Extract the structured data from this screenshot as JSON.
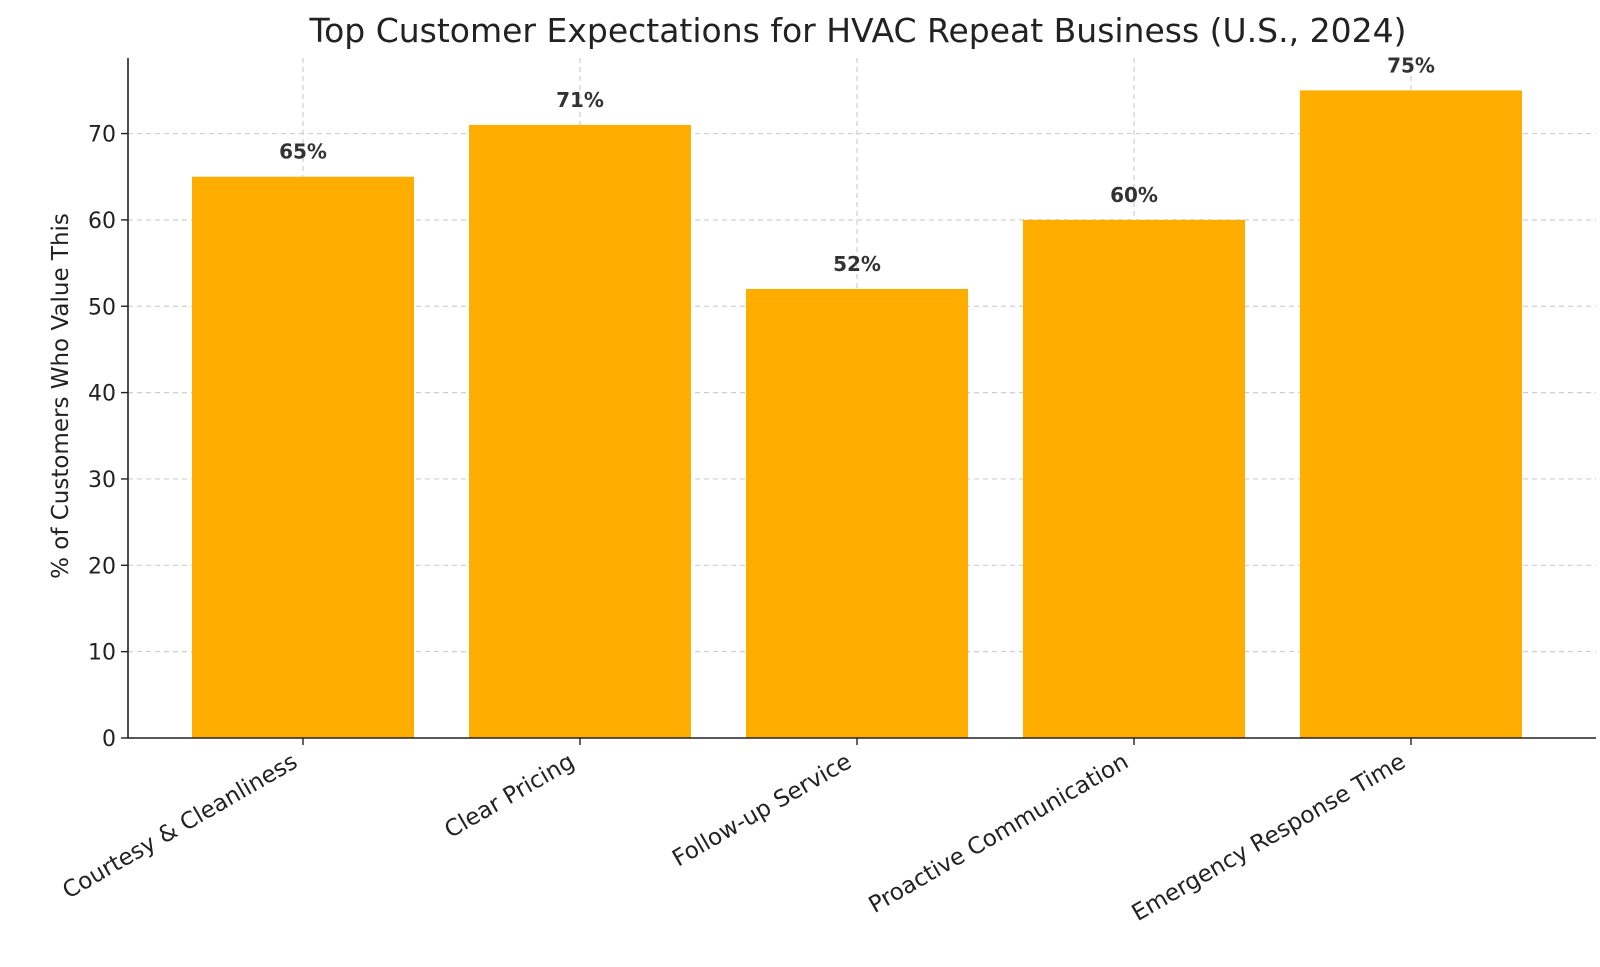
{
  "chart_data": {
    "type": "bar",
    "title": "Top Customer Expectations for HVAC Repeat Business (U.S., 2024)",
    "xlabel": "",
    "ylabel": "% of Customers Who Value This",
    "categories": [
      "Courtesy & Cleanliness",
      "Clear Pricing",
      "Follow-up Service",
      "Proactive Communication",
      "Emergency Response Time"
    ],
    "values": [
      65,
      71,
      52,
      60,
      75
    ],
    "data_labels": [
      "65%",
      "71%",
      "52%",
      "60%",
      "75%"
    ],
    "yticks": [
      0,
      10,
      20,
      30,
      40,
      50,
      60,
      70
    ],
    "ylim": [
      0,
      78.75
    ],
    "grid": true,
    "bar_color": "#FFAE00"
  }
}
